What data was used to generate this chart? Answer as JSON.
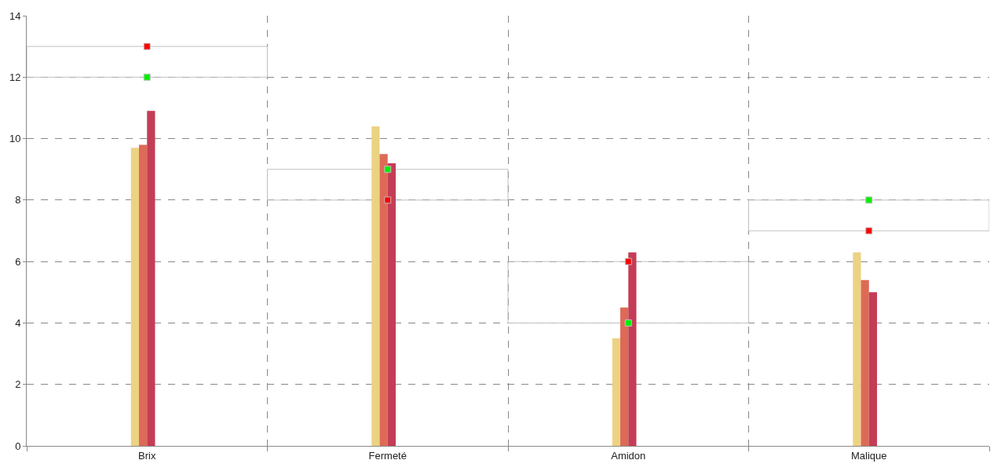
{
  "chart_data": {
    "type": "bar",
    "categories": [
      "Brix",
      "Fermeté",
      "Amidon",
      "Malique"
    ],
    "series": [
      {
        "color": "#c0c0c0",
        "base": [
          12,
          8,
          4,
          7
        ],
        "values": [
          1,
          1,
          2,
          1
        ]
      },
      {
        "color": "#ecd283",
        "values": [
          9.7,
          10.4,
          3.5,
          6.3
        ]
      },
      {
        "color": "#dd6a56",
        "values": [
          9.8,
          9.5,
          4.5,
          5.4
        ]
      },
      {
        "color": "#c43d56",
        "values": [
          10.9,
          9.2,
          6.3,
          5.0
        ]
      },
      {
        "color": "#7a2040",
        "values": [
          0,
          0,
          0,
          0
        ]
      },
      {
        "type": "scatter",
        "marker": "square",
        "color": "#ff0000",
        "values": [
          13,
          8,
          6,
          7
        ]
      },
      {
        "type": "scatter",
        "marker": "square",
        "color": "#00ee00",
        "values": [
          12,
          9,
          4,
          8
        ]
      }
    ],
    "ylim": [
      0,
      14
    ],
    "yticks": [
      0,
      2,
      4,
      6,
      8,
      10,
      12,
      14
    ],
    "grid": true
  }
}
